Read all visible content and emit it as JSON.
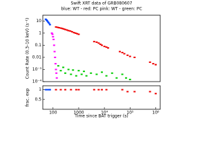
{
  "chart_data": [
    {
      "type": "scatter",
      "title": "Swift XRT data of GRB080607",
      "subtitle": "blue: WT - red: PC    pink: WT - green: PC",
      "ylabel": "Count Rate (0.3–10 keV) (s⁻¹)",
      "xscale": "log",
      "yscale": "log",
      "xlim": [
        40,
        1500000
      ],
      "ylim": [
        0.0001,
        30
      ],
      "yticks": [
        10,
        1,
        0.1,
        0.01,
        {
          "value": 0.001,
          "label": "10⁻³"
        },
        {
          "value": 0.0001,
          "label": "10⁻⁴"
        }
      ],
      "series": [
        {
          "color": "#0044ff",
          "x": [
            52,
            56,
            60,
            65,
            70,
            76
          ],
          "values": [
            14,
            12,
            10,
            8,
            6.5,
            5
          ]
        },
        {
          "color": "#ee0000",
          "x": [
            130,
            150,
            170,
            200,
            230,
            260,
            300,
            350,
            400,
            470,
            550,
            650,
            750,
            870,
            1000,
            4000,
            5000,
            6000,
            7000,
            8000,
            10000,
            12000,
            14000,
            40000,
            50000,
            60000,
            80000,
            100000,
            150000,
            600000,
            800000,
            1000000
          ],
          "values": [
            3.2,
            3,
            2.8,
            2.6,
            2.4,
            2.2,
            2,
            1.8,
            1.6,
            1.5,
            1.3,
            1.1,
            1,
            0.9,
            0.8,
            0.2,
            0.18,
            0.15,
            0.12,
            0.1,
            0.08,
            0.07,
            0.06,
            0.03,
            0.025,
            0.02,
            0.015,
            0.012,
            0.01,
            0.004,
            0.003,
            0.0025
          ]
        },
        {
          "color": "#ff00ff",
          "x": [
            90,
            95,
            100,
            105,
            110,
            115,
            120,
            125,
            130,
            135,
            140
          ],
          "values": [
            1,
            0.8,
            0.5,
            0.3,
            0.1,
            0.03,
            0.01,
            0.003,
            0.001,
            0.0005,
            0.0002
          ]
        },
        {
          "color": "#00cc00",
          "x": [
            160,
            200,
            250,
            300,
            400,
            500,
            600,
            800,
            1000,
            1300,
            1600,
            2000,
            3000,
            5000,
            8000,
            12000,
            20000,
            30000,
            50000,
            70000,
            100000
          ],
          "values": [
            0.002,
            0.0008,
            0.0015,
            0.0005,
            0.001,
            0.0004,
            0.0009,
            0.0003,
            0.0008,
            0.0004,
            0.0007,
            0.0003,
            0.0005,
            0.0004,
            0.0006,
            0.0003,
            0.0005,
            0.0002,
            0.0004,
            0.0002,
            0.00015
          ]
        }
      ]
    },
    {
      "type": "scatter",
      "ylabel": "frac. exp",
      "xlabel": "Time since BAT trigger (s)",
      "xscale": "log",
      "yscale": "linear",
      "xlim": [
        40,
        1500000
      ],
      "ylim": [
        0,
        1.2
      ],
      "yticks": [
        1,
        0.5
      ],
      "xticks": [
        100,
        1000,
        {
          "value": 10000,
          "label": "10⁴"
        },
        {
          "value": 100000,
          "label": "10⁵"
        },
        {
          "value": 1000000,
          "label": "10⁶"
        }
      ],
      "series": [
        {
          "color": "#0044ff",
          "x": [
            52,
            60,
            70,
            76
          ],
          "values": [
            1,
            1,
            1,
            1
          ]
        },
        {
          "color": "#ee0000",
          "x": [
            130,
            200,
            300,
            500,
            800,
            1000,
            4000,
            6000,
            8000,
            12000,
            50000,
            80000,
            150000,
            600000,
            1000000
          ],
          "values": [
            1,
            1,
            1,
            1,
            1,
            1,
            1,
            1,
            1,
            1,
            1,
            0.9,
            0.9,
            0.9,
            0.8
          ]
        }
      ]
    }
  ]
}
